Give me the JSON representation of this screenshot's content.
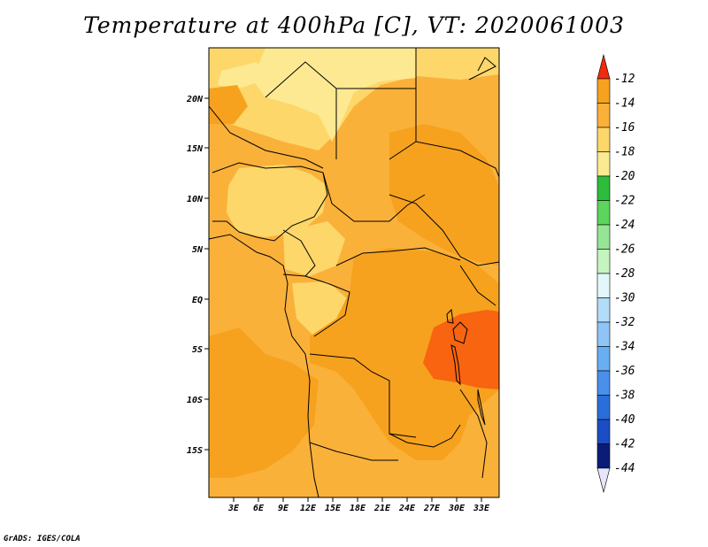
{
  "title": "Temperature at 400hPa [C], VT: 2020061003",
  "footer": "GrADS: IGES/COLA",
  "colors": {
    "t_minus16_14": "#f6a21e",
    "t_minus14_12": "#f86410",
    "t_minus18_16": "#fab13a",
    "t_minus20_18": "#fdd76a",
    "t_minus22_20": "#fde992"
  },
  "map": {
    "lat_labels": [
      "20N",
      "15N",
      "10N",
      "5N",
      "EQ",
      "5S",
      "10S",
      "15S"
    ],
    "lon_labels": [
      "3E",
      "6E",
      "9E",
      "12E",
      "15E",
      "18E",
      "21E",
      "24E",
      "27E",
      "30E",
      "33E"
    ]
  },
  "colorbar": {
    "labels": [
      "-12",
      "-14",
      "-16",
      "-18",
      "-20",
      "-22",
      "-24",
      "-26",
      "-28",
      "-30",
      "-32",
      "-34",
      "-36",
      "-38",
      "-40",
      "-42",
      "-44"
    ],
    "colors": [
      "#f86410",
      "#f6a21e",
      "#fab13a",
      "#fdd76a",
      "#fde992",
      "#2bbd3b",
      "#5cd45d",
      "#96e594",
      "#c5f4c0",
      "#e3f7fb",
      "#b3dcf9",
      "#90c4f6",
      "#69aef2",
      "#4a90ea",
      "#2a6fd9",
      "#1b4ec4",
      "#0b1c78"
    ],
    "top_arrow_color": "#f02a10",
    "bottom_arrow_color": "#e6e6fa"
  }
}
